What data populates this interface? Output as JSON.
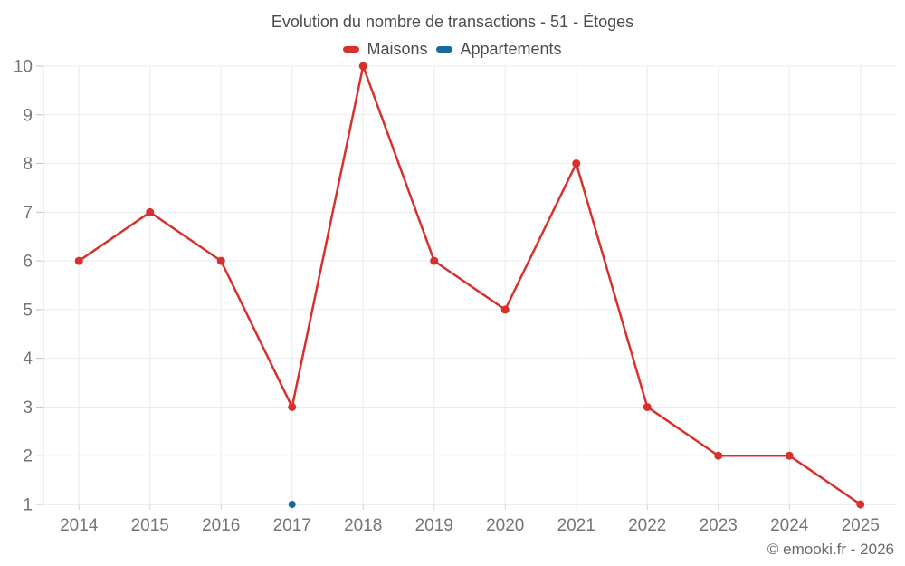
{
  "header": {
    "title": "Evolution du nombre de transactions - 51 - Étoges"
  },
  "legend": {
    "items": [
      {
        "label": "Maisons",
        "color": "#d8312d"
      },
      {
        "label": "Appartements",
        "color": "#176b9c"
      }
    ]
  },
  "footer": {
    "copyright": "© emooki.fr - 2026"
  },
  "colors": {
    "grid": "#ebebeb",
    "axis_line": "#dcdcdc",
    "y_tick": "#c2c2c2",
    "x_tick": "#d6d6d6",
    "axis_text": "#757575",
    "title_text": "#4c4c4c"
  },
  "chart_data": {
    "type": "line",
    "title": "Evolution du nombre de transactions - 51 - Étoges",
    "categories": [
      "2014",
      "2015",
      "2016",
      "2017",
      "2018",
      "2019",
      "2020",
      "2021",
      "2022",
      "2023",
      "2024",
      "2025"
    ],
    "series": [
      {
        "name": "Maisons",
        "color": "#d8312d",
        "values": [
          6,
          7,
          6,
          3,
          10,
          6,
          5,
          8,
          3,
          2,
          2,
          1
        ]
      },
      {
        "name": "Appartements",
        "color": "#176b9c",
        "values": [
          null,
          null,
          null,
          1,
          null,
          null,
          null,
          null,
          null,
          null,
          null,
          null
        ]
      }
    ],
    "xlabel": "",
    "ylabel": "",
    "ylim": [
      1,
      10
    ],
    "yticks": [
      1,
      2,
      3,
      4,
      5,
      6,
      7,
      8,
      9,
      10
    ],
    "grid": true,
    "legend_position": "top"
  }
}
